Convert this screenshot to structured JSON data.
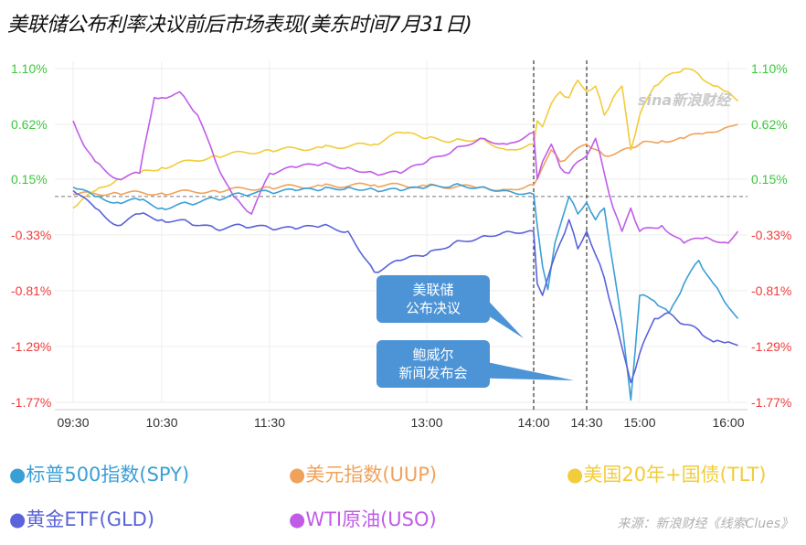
{
  "title": "美联储公布利率决议前后市场表现(美东时间7月31日)",
  "watermark": "sina新浪财经",
  "source": "来源：新浪财经《线索Clues》",
  "colors": {
    "spy": "#3a9fd6",
    "uup": "#f0a25a",
    "tlt": "#f2cc3a",
    "gld": "#5a63d9",
    "uso": "#c05ce8",
    "pos_axis": "#3cc73c",
    "neg_axis": "#ee3b3b",
    "callout": "#4d94d6"
  },
  "chart_data": {
    "type": "line",
    "title": "美联储公布利率决议前后市场表现(美东时间7月31日)",
    "x_ticks": [
      "09:30",
      "10:30",
      "11:30",
      "13:00",
      "14:00",
      "14:30",
      "15:00",
      "16:00"
    ],
    "xlim": [
      "09:30",
      "16:10"
    ],
    "y_ticks": [
      "1.10%",
      "0.62%",
      "0.15%",
      "-0.33%",
      "-0.81%",
      "-1.29%",
      "-1.77%"
    ],
    "ylim": [
      -1.77,
      1.1
    ],
    "grid": true,
    "zero_line": true,
    "events": [
      {
        "time": "14:00",
        "label_lines": [
          "美联储",
          "公布决议"
        ]
      },
      {
        "time": "14:30",
        "label_lines": [
          "鲍威尔",
          "新闻发布会"
        ]
      }
    ],
    "legend_position": "bottom",
    "series": [
      {
        "key": "spy",
        "name": "标普500指数(SPY)",
        "points": [
          [
            "09:30",
            0.08
          ],
          [
            "09:45",
            0.0
          ],
          [
            "10:00",
            -0.05
          ],
          [
            "10:15",
            -0.03
          ],
          [
            "10:30",
            -0.1
          ],
          [
            "10:45",
            -0.06
          ],
          [
            "11:00",
            -0.02
          ],
          [
            "11:15",
            0.02
          ],
          [
            "11:30",
            0.04
          ],
          [
            "11:45",
            0.05
          ],
          [
            "12:00",
            0.06
          ],
          [
            "12:15",
            0.08
          ],
          [
            "12:30",
            0.06
          ],
          [
            "12:45",
            0.05
          ],
          [
            "13:00",
            0.08
          ],
          [
            "13:15",
            0.1
          ],
          [
            "13:30",
            0.08
          ],
          [
            "13:45",
            0.05
          ],
          [
            "14:00",
            0.02
          ],
          [
            "14:02",
            -0.25
          ],
          [
            "14:05",
            -0.6
          ],
          [
            "14:08",
            -0.8
          ],
          [
            "14:12",
            -0.4
          ],
          [
            "14:16",
            -0.2
          ],
          [
            "14:20",
            0.0
          ],
          [
            "14:25",
            -0.15
          ],
          [
            "14:30",
            -0.05
          ],
          [
            "14:35",
            -0.2
          ],
          [
            "14:40",
            -0.1
          ],
          [
            "14:45",
            -0.6
          ],
          [
            "14:50",
            -1.1
          ],
          [
            "14:55",
            -1.75
          ],
          [
            "15:00",
            -0.85
          ],
          [
            "15:10",
            -0.9
          ],
          [
            "15:20",
            -1.0
          ],
          [
            "15:30",
            -0.75
          ],
          [
            "15:40",
            -0.55
          ],
          [
            "15:50",
            -0.75
          ],
          [
            "16:00",
            -0.95
          ],
          [
            "16:05",
            -1.05
          ]
        ]
      },
      {
        "key": "uup",
        "name": "美元指数(UUP)",
        "points": [
          [
            "09:30",
            0.02
          ],
          [
            "10:00",
            0.03
          ],
          [
            "10:30",
            0.03
          ],
          [
            "11:00",
            0.05
          ],
          [
            "11:30",
            0.08
          ],
          [
            "12:00",
            0.09
          ],
          [
            "12:30",
            0.1
          ],
          [
            "13:00",
            0.09
          ],
          [
            "13:30",
            0.08
          ],
          [
            "13:45",
            0.06
          ],
          [
            "14:00",
            0.1
          ],
          [
            "14:05",
            0.25
          ],
          [
            "14:10",
            0.4
          ],
          [
            "14:15",
            0.3
          ],
          [
            "14:20",
            0.35
          ],
          [
            "14:30",
            0.45
          ],
          [
            "14:40",
            0.35
          ],
          [
            "14:50",
            0.4
          ],
          [
            "15:00",
            0.45
          ],
          [
            "15:15",
            0.48
          ],
          [
            "15:30",
            0.5
          ],
          [
            "15:45",
            0.55
          ],
          [
            "16:00",
            0.6
          ],
          [
            "16:05",
            0.62
          ]
        ]
      },
      {
        "key": "tlt",
        "name": "美国20年+国债(TLT)",
        "points": [
          [
            "09:30",
            -0.1
          ],
          [
            "09:45",
            0.05
          ],
          [
            "10:00",
            0.15
          ],
          [
            "10:15",
            0.2
          ],
          [
            "10:30",
            0.25
          ],
          [
            "11:00",
            0.35
          ],
          [
            "11:30",
            0.4
          ],
          [
            "12:00",
            0.42
          ],
          [
            "12:30",
            0.45
          ],
          [
            "12:45",
            0.55
          ],
          [
            "13:00",
            0.5
          ],
          [
            "13:15",
            0.48
          ],
          [
            "13:30",
            0.5
          ],
          [
            "13:45",
            0.4
          ],
          [
            "14:00",
            0.45
          ],
          [
            "14:02",
            0.65
          ],
          [
            "14:05",
            0.6
          ],
          [
            "14:10",
            0.8
          ],
          [
            "14:15",
            0.9
          ],
          [
            "14:20",
            0.85
          ],
          [
            "14:25",
            1.0
          ],
          [
            "14:30",
            0.9
          ],
          [
            "14:35",
            0.95
          ],
          [
            "14:40",
            0.7
          ],
          [
            "14:45",
            0.85
          ],
          [
            "14:50",
            0.95
          ],
          [
            "14:55",
            0.4
          ],
          [
            "15:00",
            0.7
          ],
          [
            "15:10",
            0.95
          ],
          [
            "15:20",
            1.05
          ],
          [
            "15:30",
            1.1
          ],
          [
            "15:40",
            1.05
          ],
          [
            "15:50",
            0.95
          ],
          [
            "16:00",
            0.9
          ],
          [
            "16:05",
            0.82
          ]
        ]
      },
      {
        "key": "gld",
        "name": "黄金ETF(GLD)",
        "points": [
          [
            "09:30",
            0.05
          ],
          [
            "09:45",
            -0.1
          ],
          [
            "10:00",
            -0.25
          ],
          [
            "10:15",
            -0.15
          ],
          [
            "10:30",
            -0.2
          ],
          [
            "10:45",
            -0.22
          ],
          [
            "11:00",
            -0.28
          ],
          [
            "11:15",
            -0.25
          ],
          [
            "11:30",
            -0.27
          ],
          [
            "11:45",
            -0.28
          ],
          [
            "12:00",
            -0.25
          ],
          [
            "12:15",
            -0.3
          ],
          [
            "12:30",
            -0.65
          ],
          [
            "12:45",
            -0.55
          ],
          [
            "13:00",
            -0.5
          ],
          [
            "13:15",
            -0.4
          ],
          [
            "13:30",
            -0.35
          ],
          [
            "13:45",
            -0.3
          ],
          [
            "14:00",
            -0.3
          ],
          [
            "14:02",
            -0.75
          ],
          [
            "14:05",
            -0.85
          ],
          [
            "14:10",
            -0.6
          ],
          [
            "14:15",
            -0.4
          ],
          [
            "14:20",
            -0.2
          ],
          [
            "14:25",
            -0.45
          ],
          [
            "14:30",
            -0.3
          ],
          [
            "14:35",
            -0.5
          ],
          [
            "14:40",
            -0.7
          ],
          [
            "14:45",
            -1.0
          ],
          [
            "14:50",
            -1.3
          ],
          [
            "14:55",
            -1.6
          ],
          [
            "15:00",
            -1.35
          ],
          [
            "15:10",
            -1.05
          ],
          [
            "15:20",
            -1.0
          ],
          [
            "15:30",
            -1.1
          ],
          [
            "15:40",
            -1.15
          ],
          [
            "15:50",
            -1.25
          ],
          [
            "16:00",
            -1.25
          ],
          [
            "16:05",
            -1.28
          ]
        ]
      },
      {
        "key": "uso",
        "name": "WTI原油(USO)",
        "points": [
          [
            "09:30",
            0.65
          ],
          [
            "09:35",
            0.5
          ],
          [
            "09:45",
            0.3
          ],
          [
            "10:00",
            0.15
          ],
          [
            "10:15",
            0.2
          ],
          [
            "10:25",
            0.85
          ],
          [
            "10:30",
            0.85
          ],
          [
            "10:40",
            0.9
          ],
          [
            "10:50",
            0.7
          ],
          [
            "11:00",
            0.3
          ],
          [
            "11:10",
            0.0
          ],
          [
            "11:20",
            -0.15
          ],
          [
            "11:30",
            0.2
          ],
          [
            "11:45",
            0.25
          ],
          [
            "12:00",
            0.28
          ],
          [
            "12:15",
            0.25
          ],
          [
            "12:30",
            0.2
          ],
          [
            "12:45",
            0.2
          ],
          [
            "13:00",
            0.3
          ],
          [
            "13:15",
            0.4
          ],
          [
            "13:30",
            0.5
          ],
          [
            "13:45",
            0.45
          ],
          [
            "14:00",
            0.55
          ],
          [
            "14:02",
            0.15
          ],
          [
            "14:05",
            0.3
          ],
          [
            "14:10",
            0.45
          ],
          [
            "14:15",
            0.25
          ],
          [
            "14:20",
            0.2
          ],
          [
            "14:25",
            0.3
          ],
          [
            "14:30",
            0.35
          ],
          [
            "14:35",
            0.5
          ],
          [
            "14:40",
            0.2
          ],
          [
            "14:45",
            -0.1
          ],
          [
            "14:50",
            -0.3
          ],
          [
            "14:55",
            -0.1
          ],
          [
            "15:00",
            -0.3
          ],
          [
            "15:15",
            -0.25
          ],
          [
            "15:30",
            -0.4
          ],
          [
            "15:45",
            -0.35
          ],
          [
            "16:00",
            -0.4
          ],
          [
            "16:05",
            -0.3
          ]
        ]
      }
    ]
  }
}
